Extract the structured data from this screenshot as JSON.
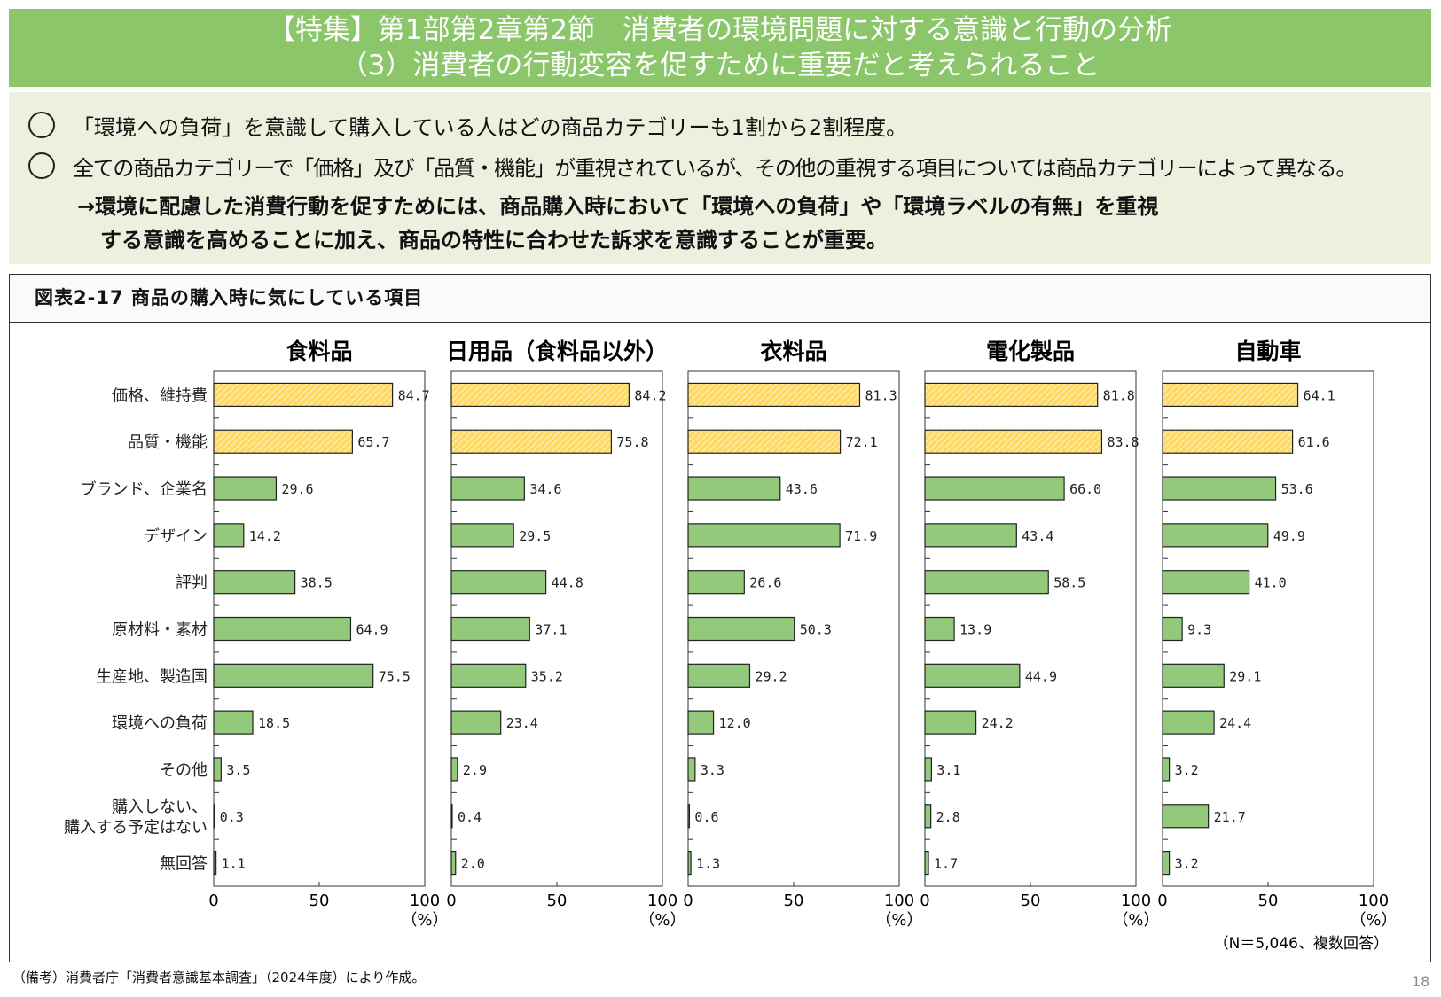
{
  "header": {
    "line1": "【特集】第1部第2章第2節　消費者の環境問題に対する意識と行動の分析",
    "line2": "（3）消費者の行動変容を促すために重要だと考えられること"
  },
  "summary": {
    "bullets": [
      "「環境への負荷」を意識して購入している人はどの商品カテゴリーも1割から2割程度。",
      "全ての商品カテゴリーで「価格」及び「品質・機能」が重視されているが、その他の重視する項目については商品カテゴリーによって異なる。"
    ],
    "conclusion_line1": "→環境に配慮した消費行動を促すためには、商品購入時において「環境への負荷」や「環境ラベルの有無」を重視",
    "conclusion_line2": "する意識を高めることに加え、商品の特性に合わせた訴求を意識することが重要。"
  },
  "figure_title": "図表2-17 商品の購入時に気にしている項目",
  "note": "（N＝5,046、複数回答）",
  "footer": "（備考）消費者庁「消費者意識基本調査」（2024年度）により作成。",
  "page_number": "18",
  "colors": {
    "header": "#8cc66a",
    "summary_bg": "#ebf1de",
    "bar": "#92c97b",
    "highlight_bar": "#ffd966"
  },
  "chart_data": {
    "type": "bar",
    "orientation": "horizontal",
    "categories": [
      "価格、維持費",
      "品質・機能",
      "ブランド、企業名",
      "デザイン",
      "評判",
      "原材料・素材",
      "生産地、製造国",
      "環境への負荷",
      "その他",
      "購入しない、\n購入する予定はない",
      "無回答"
    ],
    "highlighted_categories": [
      "価格、維持費",
      "品質・機能"
    ],
    "xlim": [
      0,
      100
    ],
    "xticks": [
      "0",
      "50",
      "100"
    ],
    "xunit": "（%）",
    "panels": [
      {
        "title": "食料品",
        "values": [
          84.7,
          65.7,
          29.6,
          14.2,
          38.5,
          64.9,
          75.5,
          18.5,
          3.5,
          0.3,
          1.1
        ]
      },
      {
        "title": "日用品（食料品以外）",
        "values": [
          84.2,
          75.8,
          34.6,
          29.5,
          44.8,
          37.1,
          35.2,
          23.4,
          2.9,
          0.4,
          2.0
        ]
      },
      {
        "title": "衣料品",
        "values": [
          81.3,
          72.1,
          43.6,
          71.9,
          26.6,
          50.3,
          29.2,
          12.0,
          3.3,
          0.6,
          1.3
        ]
      },
      {
        "title": "電化製品",
        "values": [
          81.8,
          83.8,
          66.0,
          43.4,
          58.5,
          13.9,
          44.9,
          24.2,
          3.1,
          2.8,
          1.7
        ]
      },
      {
        "title": "自動車",
        "values": [
          64.1,
          61.6,
          53.6,
          49.9,
          41.0,
          9.3,
          29.1,
          24.4,
          3.2,
          21.7,
          3.2
        ]
      }
    ]
  }
}
